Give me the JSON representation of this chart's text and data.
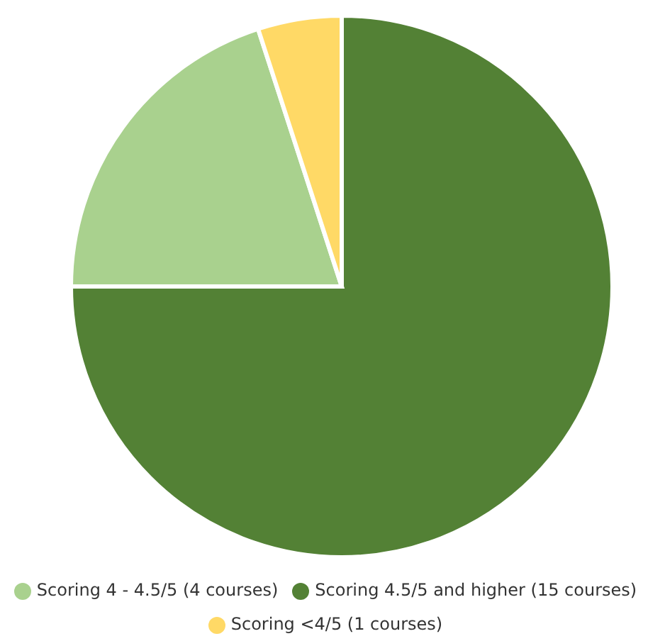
{
  "chart_data": {
    "type": "pie",
    "categories": [
      "Scoring 4.5/5 and higher (15 courses)",
      "Scoring 4 - 4.5/5 (4 courses)",
      "Scoring <4/5 (1 courses)"
    ],
    "values": [
      15,
      4,
      1
    ],
    "colors": [
      "#538135",
      "#a9d18e",
      "#ffd966"
    ],
    "legend": "bottom"
  }
}
